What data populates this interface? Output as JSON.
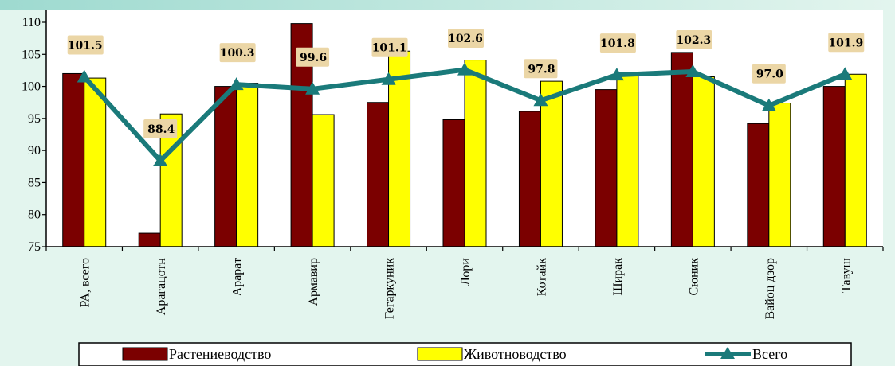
{
  "chart_data": {
    "type": "bar",
    "categories": [
      "РА, всего",
      "Арагацотн",
      "Арарат",
      "Армавир",
      "Гегаркуник",
      "Лори",
      "Котайк",
      "Ширак",
      "Сюник",
      "Вайоц дзор",
      "Тавуш"
    ],
    "series": [
      {
        "name": "Растениеводство",
        "type": "bar",
        "color": "#7b0000",
        "values": [
          102.0,
          77.1,
          100.0,
          109.8,
          97.5,
          94.8,
          96.1,
          99.5,
          105.3,
          94.2,
          100.0
        ]
      },
      {
        "name": "Животноводство",
        "type": "bar",
        "color": "#ffff00",
        "values": [
          101.3,
          95.7,
          100.5,
          95.6,
          105.5,
          104.1,
          100.8,
          101.8,
          101.5,
          97.4,
          101.9
        ]
      },
      {
        "name": "Всего",
        "type": "line",
        "color": "#1a7a7a",
        "values": [
          101.5,
          88.4,
          100.3,
          99.6,
          101.1,
          102.6,
          97.8,
          101.8,
          102.3,
          97.0,
          101.9
        ]
      }
    ],
    "data_labels": [
      "101.5",
      "88.4",
      "100.3",
      "99.6",
      "101.1",
      "102.6",
      "97.8",
      "101.8",
      "102.3",
      "97.0",
      "101.9"
    ],
    "y_ticks": [
      "75",
      "80",
      "85",
      "90",
      "95",
      "100",
      "105",
      "110"
    ],
    "ylim": [
      75,
      110
    ],
    "grid": false,
    "legend_position": "bottom",
    "title": "",
    "xlabel": "",
    "ylabel": ""
  }
}
